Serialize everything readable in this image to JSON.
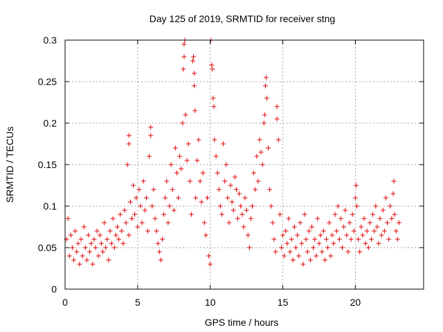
{
  "chart_data": {
    "type": "scatter",
    "title": "Day 125 of 2019, SRMTID for receiver stng",
    "xlabel": "GPS time / hours",
    "ylabel": "SRMTID / TECUs",
    "xlim": [
      0,
      24.7
    ],
    "ylim": [
      0,
      0.3
    ],
    "xticks": [
      0,
      5,
      10,
      15,
      20
    ],
    "yticks": [
      0,
      0.05,
      0.1,
      0.15,
      0.2,
      0.25,
      0.3
    ],
    "xtick_labels": [
      "0",
      "5",
      "10",
      "15",
      "20"
    ],
    "ytick_labels": [
      "0",
      "0.05",
      "0.1",
      "0.15",
      "0.2",
      "0.25",
      "0.3"
    ],
    "grid": true,
    "marker": "+",
    "marker_color": "#e00000",
    "series": [
      {
        "points": [
          [
            0.1,
            0.06
          ],
          [
            0.2,
            0.085
          ],
          [
            0.3,
            0.04
          ],
          [
            0.4,
            0.065
          ],
          [
            0.5,
            0.05
          ],
          [
            0.6,
            0.035
          ],
          [
            0.7,
            0.07
          ],
          [
            0.8,
            0.045
          ],
          [
            0.9,
            0.055
          ],
          [
            1.0,
            0.03
          ],
          [
            1.1,
            0.06
          ],
          [
            1.2,
            0.04
          ],
          [
            1.3,
            0.075
          ],
          [
            1.4,
            0.05
          ],
          [
            1.5,
            0.035
          ],
          [
            1.6,
            0.065
          ],
          [
            1.7,
            0.045
          ],
          [
            1.8,
            0.055
          ],
          [
            1.9,
            0.03
          ],
          [
            2.0,
            0.06
          ],
          [
            2.1,
            0.05
          ],
          [
            2.2,
            0.07
          ],
          [
            2.3,
            0.04
          ],
          [
            2.4,
            0.065
          ],
          [
            2.5,
            0.055
          ],
          [
            2.6,
            0.045
          ],
          [
            2.7,
            0.08
          ],
          [
            2.8,
            0.05
          ],
          [
            2.9,
            0.06
          ],
          [
            3.0,
            0.035
          ],
          [
            3.1,
            0.07
          ],
          [
            3.2,
            0.055
          ],
          [
            3.3,
            0.085
          ],
          [
            3.4,
            0.05
          ],
          [
            3.5,
            0.065
          ],
          [
            3.6,
            0.075
          ],
          [
            3.7,
            0.06
          ],
          [
            3.8,
            0.09
          ],
          [
            3.9,
            0.07
          ],
          [
            4.0,
            0.055
          ],
          [
            4.1,
            0.095
          ],
          [
            4.2,
            0.08
          ],
          [
            4.3,
            0.15
          ],
          [
            4.4,
            0.065
          ],
          [
            4.5,
            0.105
          ],
          [
            4.6,
            0.085
          ],
          [
            4.7,
            0.125
          ],
          [
            4.8,
            0.09
          ],
          [
            4.9,
            0.11
          ],
          [
            5.0,
            0.075
          ],
          [
            4.4,
            0.185
          ],
          [
            4.4,
            0.175
          ],
          [
            5.1,
            0.12
          ],
          [
            5.2,
            0.1
          ],
          [
            5.3,
            0.08
          ],
          [
            5.4,
            0.13
          ],
          [
            5.5,
            0.095
          ],
          [
            5.6,
            0.11
          ],
          [
            5.7,
            0.07
          ],
          [
            5.8,
            0.16
          ],
          [
            5.9,
            0.195
          ],
          [
            5.9,
            0.185
          ],
          [
            6.0,
            0.1
          ],
          [
            6.1,
            0.12
          ],
          [
            6.2,
            0.085
          ],
          [
            6.3,
            0.07
          ],
          [
            6.4,
            0.055
          ],
          [
            6.5,
            0.045
          ],
          [
            6.6,
            0.035
          ],
          [
            6.7,
            0.06
          ],
          [
            6.8,
            0.09
          ],
          [
            6.9,
            0.11
          ],
          [
            7.0,
            0.13
          ],
          [
            7.1,
            0.08
          ],
          [
            7.2,
            0.1
          ],
          [
            7.3,
            0.15
          ],
          [
            7.4,
            0.12
          ],
          [
            7.5,
            0.095
          ],
          [
            7.6,
            0.17
          ],
          [
            7.7,
            0.14
          ],
          [
            7.8,
            0.11
          ],
          [
            7.9,
            0.16
          ],
          [
            8.0,
            0.145
          ],
          [
            8.1,
            0.2
          ],
          [
            8.15,
            0.265
          ],
          [
            8.2,
            0.28
          ],
          [
            8.2,
            0.295
          ],
          [
            8.25,
            0.3
          ],
          [
            8.3,
            0.21
          ],
          [
            8.4,
            0.155
          ],
          [
            8.5,
            0.175
          ],
          [
            8.6,
            0.13
          ],
          [
            8.7,
            0.09
          ],
          [
            8.8,
            0.275
          ],
          [
            8.85,
            0.28
          ],
          [
            8.9,
            0.26
          ],
          [
            8.9,
            0.245
          ],
          [
            8.95,
            0.215
          ],
          [
            9.0,
            0.11
          ],
          [
            9.1,
            0.155
          ],
          [
            9.2,
            0.18
          ],
          [
            9.3,
            0.13
          ],
          [
            9.4,
            0.105
          ],
          [
            9.5,
            0.14
          ],
          [
            9.6,
            0.08
          ],
          [
            9.7,
            0.065
          ],
          [
            9.8,
            0.11
          ],
          [
            9.9,
            0.04
          ],
          [
            10.0,
            0.03
          ],
          [
            10.05,
            0.3
          ],
          [
            10.1,
            0.27
          ],
          [
            10.15,
            0.265
          ],
          [
            10.2,
            0.23
          ],
          [
            10.25,
            0.22
          ],
          [
            10.3,
            0.18
          ],
          [
            10.4,
            0.16
          ],
          [
            10.5,
            0.14
          ],
          [
            10.6,
            0.12
          ],
          [
            10.7,
            0.1
          ],
          [
            10.8,
            0.09
          ],
          [
            10.9,
            0.175
          ],
          [
            11.0,
            0.13
          ],
          [
            11.1,
            0.15
          ],
          [
            11.2,
            0.11
          ],
          [
            11.3,
            0.08
          ],
          [
            11.4,
            0.125
          ],
          [
            11.5,
            0.105
          ],
          [
            11.6,
            0.095
          ],
          [
            11.7,
            0.135
          ],
          [
            11.8,
            0.12
          ],
          [
            11.9,
            0.085
          ],
          [
            12.0,
            0.115
          ],
          [
            12.1,
            0.1
          ],
          [
            12.2,
            0.09
          ],
          [
            12.3,
            0.075
          ],
          [
            12.4,
            0.11
          ],
          [
            12.5,
            0.095
          ],
          [
            12.6,
            0.065
          ],
          [
            12.7,
            0.05
          ],
          [
            12.8,
            0.085
          ],
          [
            12.9,
            0.1
          ],
          [
            13.0,
            0.14
          ],
          [
            13.1,
            0.12
          ],
          [
            13.2,
            0.16
          ],
          [
            13.3,
            0.13
          ],
          [
            13.4,
            0.18
          ],
          [
            13.5,
            0.165
          ],
          [
            13.6,
            0.15
          ],
          [
            13.7,
            0.2
          ],
          [
            13.75,
            0.21
          ],
          [
            13.8,
            0.245
          ],
          [
            13.85,
            0.255
          ],
          [
            13.9,
            0.23
          ],
          [
            14.0,
            0.17
          ],
          [
            14.1,
            0.12
          ],
          [
            14.2,
            0.1
          ],
          [
            14.3,
            0.08
          ],
          [
            14.4,
            0.06
          ],
          [
            14.5,
            0.045
          ],
          [
            14.6,
            0.22
          ],
          [
            14.6,
            0.205
          ],
          [
            14.7,
            0.18
          ],
          [
            14.8,
            0.09
          ],
          [
            14.9,
            0.05
          ],
          [
            15.0,
            0.065
          ],
          [
            15.1,
            0.04
          ],
          [
            15.2,
            0.07
          ],
          [
            15.3,
            0.055
          ],
          [
            15.4,
            0.085
          ],
          [
            15.5,
            0.045
          ],
          [
            15.6,
            0.06
          ],
          [
            15.7,
            0.035
          ],
          [
            15.8,
            0.075
          ],
          [
            15.9,
            0.05
          ],
          [
            16.0,
            0.065
          ],
          [
            16.1,
            0.04
          ],
          [
            16.2,
            0.08
          ],
          [
            16.3,
            0.055
          ],
          [
            16.4,
            0.03
          ],
          [
            16.5,
            0.09
          ],
          [
            16.6,
            0.06
          ],
          [
            16.7,
            0.045
          ],
          [
            16.8,
            0.07
          ],
          [
            16.9,
            0.035
          ],
          [
            17.0,
            0.075
          ],
          [
            17.1,
            0.05
          ],
          [
            17.2,
            0.06
          ],
          [
            17.3,
            0.04
          ],
          [
            17.4,
            0.085
          ],
          [
            17.5,
            0.055
          ],
          [
            17.6,
            0.065
          ],
          [
            17.7,
            0.045
          ],
          [
            17.8,
            0.07
          ],
          [
            17.9,
            0.035
          ],
          [
            18.0,
            0.06
          ],
          [
            18.1,
            0.05
          ],
          [
            18.2,
            0.08
          ],
          [
            18.3,
            0.04
          ],
          [
            18.4,
            0.065
          ],
          [
            18.5,
            0.055
          ],
          [
            18.6,
            0.09
          ],
          [
            18.7,
            0.07
          ],
          [
            18.8,
            0.1
          ],
          [
            18.9,
            0.06
          ],
          [
            19.0,
            0.085
          ],
          [
            19.1,
            0.05
          ],
          [
            19.2,
            0.075
          ],
          [
            19.3,
            0.095
          ],
          [
            19.4,
            0.065
          ],
          [
            19.5,
            0.045
          ],
          [
            19.6,
            0.08
          ],
          [
            19.7,
            0.06
          ],
          [
            19.8,
            0.09
          ],
          [
            19.9,
            0.07
          ],
          [
            20.0,
            0.11
          ],
          [
            20.05,
            0.125
          ],
          [
            20.1,
            0.1
          ],
          [
            20.2,
            0.06
          ],
          [
            20.3,
            0.045
          ],
          [
            20.4,
            0.075
          ],
          [
            20.5,
            0.065
          ],
          [
            20.6,
            0.085
          ],
          [
            20.7,
            0.055
          ],
          [
            20.8,
            0.07
          ],
          [
            20.9,
            0.05
          ],
          [
            21.0,
            0.08
          ],
          [
            21.1,
            0.06
          ],
          [
            21.2,
            0.09
          ],
          [
            21.3,
            0.07
          ],
          [
            21.4,
            0.1
          ],
          [
            21.5,
            0.075
          ],
          [
            21.6,
            0.055
          ],
          [
            21.7,
            0.085
          ],
          [
            21.8,
            0.065
          ],
          [
            21.9,
            0.095
          ],
          [
            22.0,
            0.07
          ],
          [
            22.1,
            0.11
          ],
          [
            22.2,
            0.08
          ],
          [
            22.3,
            0.06
          ],
          [
            22.4,
            0.1
          ],
          [
            22.5,
            0.085
          ],
          [
            22.6,
            0.115
          ],
          [
            22.65,
            0.13
          ],
          [
            22.7,
            0.09
          ],
          [
            22.8,
            0.07
          ],
          [
            22.9,
            0.06
          ],
          [
            23.0,
            0.08
          ]
        ]
      }
    ]
  }
}
